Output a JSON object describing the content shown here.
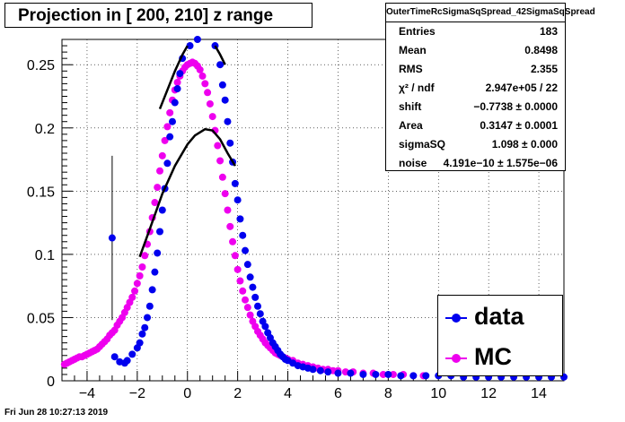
{
  "title": "Projection in [ 200, 210] z range",
  "timestamp": "Fri Jun 28 10:27:13 2019",
  "stats": {
    "title": "OuterTimeRcSigmaSqSpread_42SigmaSqSpread",
    "rows": [
      {
        "key": "Entries",
        "value": "183"
      },
      {
        "key": "Mean",
        "value": "0.8498"
      },
      {
        "key": "RMS",
        "value": "2.355"
      },
      {
        "key": "χ² / ndf",
        "value": "2.947e+05 / 22"
      },
      {
        "key": "shift",
        "value": "−0.7738 ± 0.0000"
      },
      {
        "key": "Area",
        "value": "0.3147 ± 0.0001"
      },
      {
        "key": "sigmaSQ",
        "value": "1.098 ± 0.000"
      },
      {
        "key": "noise",
        "value": "4.191e−10 ± 1.575e−06"
      }
    ]
  },
  "legend": [
    {
      "label": "data",
      "color": "#0000ee"
    },
    {
      "label": "MC",
      "color": "#ee00ee"
    }
  ],
  "chart_data": {
    "type": "scatter",
    "title": "Projection in [ 200, 210] z range",
    "xlim": [
      -5,
      15
    ],
    "ylim": [
      0,
      0.27
    ],
    "x_ticks": [
      -4,
      -2,
      0,
      2,
      4,
      6,
      8,
      10,
      12,
      14
    ],
    "y_ticks": [
      0.05,
      0.1,
      0.15,
      0.2,
      0.25
    ],
    "x_tick_labels": [
      "−4",
      "−2",
      "0",
      "2",
      "4",
      "6",
      "8",
      "10",
      "12",
      "14"
    ],
    "y_tick_labels": [
      "0.05",
      "0.1",
      "0.15",
      "0.2",
      "0.25"
    ],
    "y_zero_label": "0",
    "grid": true,
    "series": [
      {
        "name": "data",
        "color": "#0000ee",
        "points": [
          [
            -3,
            0.113
          ],
          [
            -2.9,
            0.019
          ],
          [
            -2.7,
            0.015
          ],
          [
            -2.5,
            0.014
          ],
          [
            -2.4,
            0.016
          ],
          [
            -2.2,
            0.021
          ],
          [
            -2.0,
            0.026
          ],
          [
            -1.9,
            0.03
          ],
          [
            -1.8,
            0.037
          ],
          [
            -1.7,
            0.042
          ],
          [
            -1.6,
            0.05
          ],
          [
            -1.5,
            0.059
          ],
          [
            -1.4,
            0.072
          ],
          [
            -1.3,
            0.086
          ],
          [
            -1.2,
            0.101
          ],
          [
            -1.1,
            0.118
          ],
          [
            -1.0,
            0.135
          ],
          [
            -0.9,
            0.152
          ],
          [
            -0.8,
            0.172
          ],
          [
            -0.7,
            0.193
          ],
          [
            -0.6,
            0.205
          ],
          [
            -0.5,
            0.22
          ],
          [
            -0.4,
            0.231
          ],
          [
            -0.3,
            0.243
          ],
          [
            -0.2,
            0.255
          ],
          [
            0.1,
            0.265
          ],
          [
            0.4,
            0.272
          ],
          [
            1.1,
            0.265
          ],
          [
            1.3,
            0.25
          ],
          [
            1.4,
            0.234
          ],
          [
            1.5,
            0.222
          ],
          [
            1.6,
            0.205
          ],
          [
            1.7,
            0.188
          ],
          [
            1.8,
            0.173
          ],
          [
            1.9,
            0.156
          ],
          [
            2.0,
            0.143
          ],
          [
            2.1,
            0.128
          ],
          [
            2.2,
            0.115
          ],
          [
            2.3,
            0.103
          ],
          [
            2.4,
            0.092
          ],
          [
            2.5,
            0.082
          ],
          [
            2.6,
            0.074
          ],
          [
            2.7,
            0.066
          ],
          [
            2.8,
            0.059
          ],
          [
            2.9,
            0.053
          ],
          [
            3.0,
            0.047
          ],
          [
            3.1,
            0.043
          ],
          [
            3.2,
            0.038
          ],
          [
            3.3,
            0.034
          ],
          [
            3.4,
            0.03
          ],
          [
            3.5,
            0.027
          ],
          [
            3.6,
            0.024
          ],
          [
            3.7,
            0.021
          ],
          [
            3.8,
            0.019
          ],
          [
            3.9,
            0.017
          ],
          [
            4.0,
            0.016
          ],
          [
            4.2,
            0.014
          ],
          [
            4.4,
            0.012
          ],
          [
            4.6,
            0.011
          ],
          [
            4.8,
            0.01
          ],
          [
            5.0,
            0.009
          ],
          [
            5.3,
            0.008
          ],
          [
            5.6,
            0.007
          ],
          [
            6.0,
            0.006
          ],
          [
            6.5,
            0.006
          ],
          [
            7.0,
            0.005
          ],
          [
            7.5,
            0.005
          ],
          [
            8.0,
            0.005
          ],
          [
            8.5,
            0.004
          ],
          [
            9.0,
            0.004
          ],
          [
            9.5,
            0.004
          ],
          [
            10.0,
            0.004
          ],
          [
            10.5,
            0.004
          ],
          [
            11.0,
            0.003
          ],
          [
            11.5,
            0.003
          ],
          [
            12.0,
            0.003
          ],
          [
            12.5,
            0.003
          ],
          [
            13.0,
            0.003
          ],
          [
            13.5,
            0.003
          ],
          [
            14.0,
            0.003
          ],
          [
            14.5,
            0.003
          ],
          [
            15.0,
            0.003
          ]
        ]
      },
      {
        "name": "MC",
        "color": "#ee00ee",
        "points": [
          [
            -4.9,
            0.013
          ],
          [
            -4.8,
            0.014
          ],
          [
            -4.7,
            0.015
          ],
          [
            -4.6,
            0.016
          ],
          [
            -4.5,
            0.017
          ],
          [
            -4.4,
            0.018
          ],
          [
            -4.3,
            0.019
          ],
          [
            -4.2,
            0.019
          ],
          [
            -4.1,
            0.02
          ],
          [
            -4.0,
            0.021
          ],
          [
            -3.9,
            0.022
          ],
          [
            -3.8,
            0.023
          ],
          [
            -3.7,
            0.024
          ],
          [
            -3.6,
            0.025
          ],
          [
            -3.5,
            0.027
          ],
          [
            -3.4,
            0.029
          ],
          [
            -3.3,
            0.031
          ],
          [
            -3.2,
            0.033
          ],
          [
            -3.1,
            0.036
          ],
          [
            -3.0,
            0.038
          ],
          [
            -2.9,
            0.04
          ],
          [
            -2.8,
            0.044
          ],
          [
            -2.7,
            0.047
          ],
          [
            -2.6,
            0.05
          ],
          [
            -2.5,
            0.054
          ],
          [
            -2.4,
            0.058
          ],
          [
            -2.3,
            0.062
          ],
          [
            -2.2,
            0.066
          ],
          [
            -2.1,
            0.071
          ],
          [
            -2.0,
            0.077
          ],
          [
            -1.9,
            0.083
          ],
          [
            -1.8,
            0.09
          ],
          [
            -1.7,
            0.099
          ],
          [
            -1.6,
            0.108
          ],
          [
            -1.5,
            0.118
          ],
          [
            -1.4,
            0.129
          ],
          [
            -1.3,
            0.141
          ],
          [
            -1.2,
            0.153
          ],
          [
            -1.1,
            0.166
          ],
          [
            -1.0,
            0.178
          ],
          [
            -0.9,
            0.19
          ],
          [
            -0.8,
            0.201
          ],
          [
            -0.7,
            0.212
          ],
          [
            -0.6,
            0.222
          ],
          [
            -0.5,
            0.23
          ],
          [
            -0.4,
            0.236
          ],
          [
            -0.3,
            0.241
          ],
          [
            -0.2,
            0.245
          ],
          [
            -0.1,
            0.248
          ],
          [
            0.0,
            0.25
          ],
          [
            0.1,
            0.251
          ],
          [
            0.2,
            0.252
          ],
          [
            0.3,
            0.251
          ],
          [
            0.4,
            0.249
          ],
          [
            0.5,
            0.246
          ],
          [
            0.6,
            0.241
          ],
          [
            0.7,
            0.235
          ],
          [
            0.8,
            0.228
          ],
          [
            0.9,
            0.219
          ],
          [
            1.0,
            0.209
          ],
          [
            1.1,
            0.198
          ],
          [
            1.2,
            0.186
          ],
          [
            1.3,
            0.174
          ],
          [
            1.4,
            0.161
          ],
          [
            1.5,
            0.148
          ],
          [
            1.6,
            0.135
          ],
          [
            1.7,
            0.122
          ],
          [
            1.8,
            0.11
          ],
          [
            1.9,
            0.099
          ],
          [
            2.0,
            0.088
          ],
          [
            2.1,
            0.079
          ],
          [
            2.2,
            0.071
          ],
          [
            2.3,
            0.064
          ],
          [
            2.4,
            0.058
          ],
          [
            2.5,
            0.052
          ],
          [
            2.6,
            0.047
          ],
          [
            2.7,
            0.043
          ],
          [
            2.8,
            0.039
          ],
          [
            2.9,
            0.036
          ],
          [
            3.0,
            0.033
          ],
          [
            3.1,
            0.03
          ],
          [
            3.2,
            0.028
          ],
          [
            3.3,
            0.026
          ],
          [
            3.4,
            0.024
          ],
          [
            3.5,
            0.022
          ],
          [
            3.6,
            0.021
          ],
          [
            3.7,
            0.02
          ],
          [
            3.8,
            0.019
          ],
          [
            3.9,
            0.018
          ],
          [
            4.0,
            0.017
          ],
          [
            4.2,
            0.016
          ],
          [
            4.4,
            0.014
          ],
          [
            4.6,
            0.013
          ],
          [
            4.8,
            0.012
          ],
          [
            5.0,
            0.011
          ],
          [
            5.2,
            0.01
          ],
          [
            5.4,
            0.009
          ],
          [
            5.6,
            0.009
          ],
          [
            5.8,
            0.008
          ],
          [
            6.0,
            0.008
          ],
          [
            6.3,
            0.007
          ],
          [
            6.6,
            0.007
          ],
          [
            7.0,
            0.006
          ],
          [
            7.4,
            0.006
          ],
          [
            7.8,
            0.005
          ],
          [
            8.2,
            0.005
          ],
          [
            8.6,
            0.005
          ],
          [
            9.0,
            0.004
          ],
          [
            9.4,
            0.004
          ]
        ]
      }
    ],
    "error_bars": [
      {
        "x": -3,
        "y_low": 0.048,
        "y_high": 0.178
      }
    ],
    "fits": [
      {
        "color": "#000000",
        "points": [
          [
            -1.1,
            0.215
          ],
          [
            -0.8,
            0.23
          ],
          [
            -0.5,
            0.245
          ],
          [
            -0.2,
            0.258
          ],
          [
            0.0,
            0.265
          ]
        ]
      },
      {
        "color": "#000000",
        "points": [
          [
            1.1,
            0.265
          ],
          [
            1.3,
            0.258
          ],
          [
            1.5,
            0.25
          ]
        ]
      },
      {
        "color": "#000000",
        "points": [
          [
            -1.9,
            0.098
          ],
          [
            -1.5,
            0.12
          ],
          [
            -1.0,
            0.148
          ],
          [
            -0.5,
            0.17
          ],
          [
            0.0,
            0.187
          ],
          [
            0.3,
            0.194
          ],
          [
            0.7,
            0.199
          ],
          [
            1.0,
            0.198
          ],
          [
            1.3,
            0.191
          ],
          [
            1.6,
            0.18
          ],
          [
            1.9,
            0.17
          ]
        ]
      }
    ]
  }
}
